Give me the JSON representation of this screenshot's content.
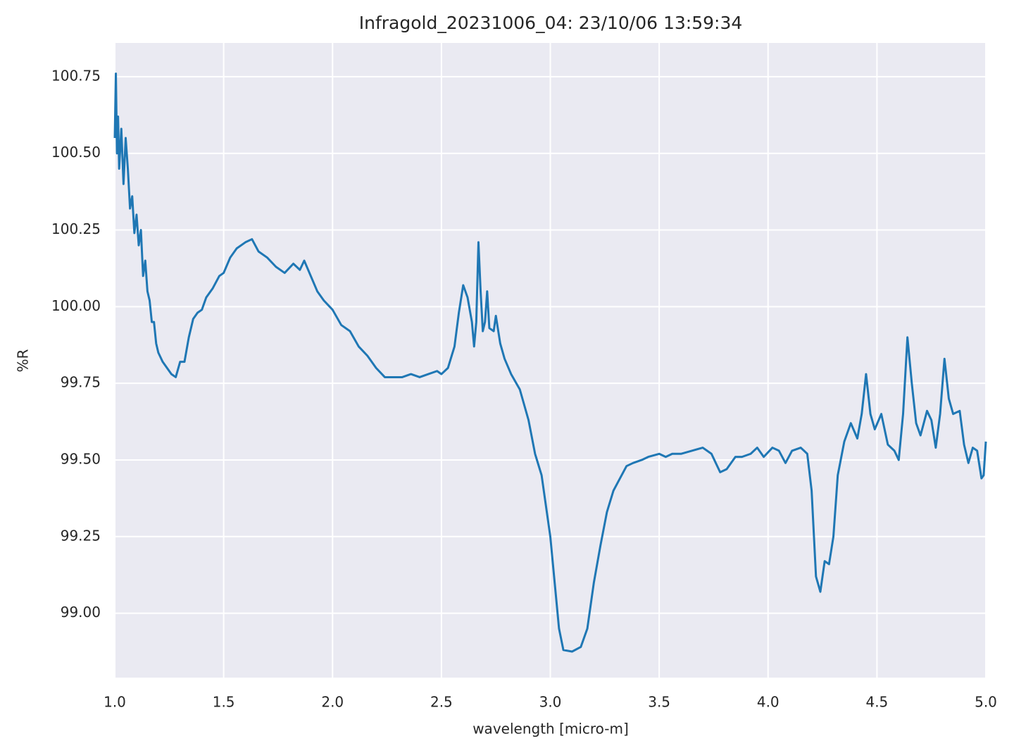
{
  "chart_data": {
    "type": "line",
    "title": "Infragold_20231006_04:  23/10/06 13:59:34",
    "xlabel": "wavelength [micro-m]",
    "ylabel": "%R",
    "color": "#1f77b4",
    "grid": true,
    "xlim": [
      1.0,
      5.0
    ],
    "xticks": [
      {
        "value": 1.0,
        "label": "1.0"
      },
      1.5,
      {
        "value": 2.0,
        "label": "2.0"
      },
      2.5,
      {
        "value": 3.0,
        "label": "3.0"
      },
      3.5,
      {
        "value": 4.0,
        "label": "4.0"
      },
      4.5,
      {
        "value": 5.0,
        "label": "5.0"
      }
    ],
    "ylim": [
      98.79,
      100.86
    ],
    "yticks": [
      {
        "value": 99.0,
        "label": "99.00"
      },
      99.25,
      {
        "value": 99.5,
        "label": "99.50"
      },
      99.75,
      {
        "value": 100.0,
        "label": "100.00"
      },
      100.25,
      {
        "value": 100.5,
        "label": "100.50"
      },
      100.75
    ],
    "x": [
      1.0,
      1.005,
      1.01,
      1.015,
      1.02,
      1.03,
      1.04,
      1.05,
      1.06,
      1.07,
      1.08,
      1.09,
      1.1,
      1.11,
      1.12,
      1.13,
      1.14,
      1.15,
      1.16,
      1.17,
      1.18,
      1.19,
      1.2,
      1.22,
      1.24,
      1.26,
      1.28,
      1.3,
      1.32,
      1.34,
      1.36,
      1.38,
      1.4,
      1.42,
      1.45,
      1.48,
      1.5,
      1.53,
      1.56,
      1.6,
      1.63,
      1.66,
      1.7,
      1.74,
      1.78,
      1.82,
      1.85,
      1.87,
      1.9,
      1.93,
      1.96,
      2.0,
      2.04,
      2.08,
      2.12,
      2.16,
      2.2,
      2.24,
      2.28,
      2.32,
      2.36,
      2.4,
      2.44,
      2.48,
      2.5,
      2.53,
      2.56,
      2.58,
      2.6,
      2.62,
      2.64,
      2.65,
      2.66,
      2.67,
      2.68,
      2.69,
      2.7,
      2.71,
      2.72,
      2.74,
      2.75,
      2.77,
      2.79,
      2.82,
      2.86,
      2.9,
      2.93,
      2.96,
      2.98,
      3.0,
      3.02,
      3.04,
      3.06,
      3.1,
      3.14,
      3.17,
      3.2,
      3.23,
      3.26,
      3.29,
      3.32,
      3.35,
      3.38,
      3.42,
      3.45,
      3.5,
      3.53,
      3.56,
      3.6,
      3.65,
      3.7,
      3.74,
      3.78,
      3.81,
      3.85,
      3.88,
      3.92,
      3.95,
      3.98,
      4.02,
      4.05,
      4.08,
      4.11,
      4.15,
      4.18,
      4.2,
      4.22,
      4.24,
      4.26,
      4.28,
      4.3,
      4.32,
      4.35,
      4.38,
      4.41,
      4.43,
      4.45,
      4.47,
      4.49,
      4.52,
      4.55,
      4.58,
      4.6,
      4.62,
      4.64,
      4.66,
      4.68,
      4.7,
      4.73,
      4.75,
      4.77,
      4.79,
      4.81,
      4.83,
      4.85,
      4.88,
      4.9,
      4.92,
      4.94,
      4.96,
      4.98,
      4.99,
      5.0
    ],
    "values": [
      100.55,
      100.76,
      100.5,
      100.62,
      100.45,
      100.58,
      100.4,
      100.55,
      100.45,
      100.32,
      100.36,
      100.24,
      100.3,
      100.2,
      100.25,
      100.1,
      100.15,
      100.05,
      100.02,
      99.95,
      99.95,
      99.88,
      99.85,
      99.82,
      99.8,
      99.78,
      99.77,
      99.82,
      99.82,
      99.9,
      99.96,
      99.98,
      99.99,
      100.03,
      100.06,
      100.1,
      100.11,
      100.16,
      100.19,
      100.21,
      100.22,
      100.18,
      100.16,
      100.13,
      100.11,
      100.14,
      100.12,
      100.15,
      100.1,
      100.05,
      100.02,
      99.99,
      99.94,
      99.92,
      99.87,
      99.84,
      99.8,
      99.77,
      99.77,
      99.77,
      99.78,
      99.77,
      99.78,
      99.79,
      99.78,
      99.8,
      99.87,
      99.98,
      100.07,
      100.03,
      99.95,
      99.87,
      99.95,
      100.21,
      100.05,
      99.92,
      99.95,
      100.05,
      99.93,
      99.92,
      99.97,
      99.88,
      99.83,
      99.78,
      99.73,
      99.63,
      99.52,
      99.45,
      99.35,
      99.25,
      99.1,
      98.95,
      98.88,
      98.875,
      98.89,
      98.95,
      99.1,
      99.22,
      99.33,
      99.4,
      99.44,
      99.48,
      99.49,
      99.5,
      99.51,
      99.52,
      99.51,
      99.52,
      99.52,
      99.53,
      99.54,
      99.52,
      99.46,
      99.47,
      99.51,
      99.51,
      99.52,
      99.54,
      99.51,
      99.54,
      99.53,
      99.49,
      99.53,
      99.54,
      99.52,
      99.4,
      99.12,
      99.07,
      99.17,
      99.16,
      99.25,
      99.45,
      99.56,
      99.62,
      99.57,
      99.65,
      99.78,
      99.65,
      99.6,
      99.65,
      99.55,
      99.53,
      99.5,
      99.65,
      99.9,
      99.75,
      99.62,
      99.58,
      99.66,
      99.63,
      99.54,
      99.65,
      99.83,
      99.7,
      99.65,
      99.66,
      99.55,
      99.49,
      99.54,
      99.53,
      99.44,
      99.45,
      99.56
    ]
  }
}
